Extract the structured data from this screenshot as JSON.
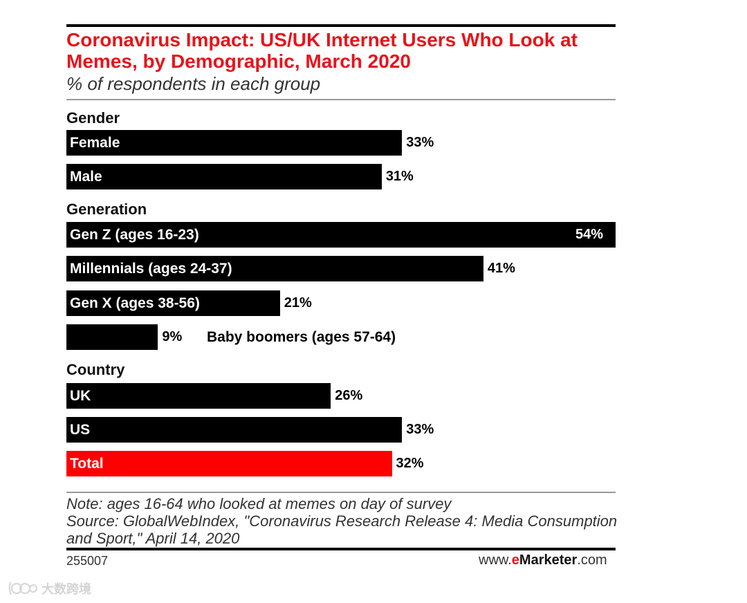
{
  "chart_data": {
    "type": "bar",
    "orientation": "horizontal",
    "title": "Coronavirus Impact: US/UK Internet Users Who Look at Memes, by Demographic, March 2020",
    "subtitle": "% of respondents in each group",
    "unit": "%",
    "xlim": [
      0,
      54
    ],
    "groups": [
      {
        "label": "Gender",
        "bars": [
          {
            "label": "Female",
            "value": 33,
            "value_text": "33%"
          },
          {
            "label": "Male",
            "value": 31,
            "value_text": "31%"
          }
        ]
      },
      {
        "label": "Generation",
        "bars": [
          {
            "label": "Gen Z (ages 16-23)",
            "value": 54,
            "value_text": "54%"
          },
          {
            "label": "Millennials (ages 24-37)",
            "value": 41,
            "value_text": "41%"
          },
          {
            "label": "Gen X (ages 38-56)",
            "value": 21,
            "value_text": "21%"
          },
          {
            "label": "Baby boomers (ages 57-64)",
            "value": 9,
            "value_text": "9%"
          }
        ]
      },
      {
        "label": "Country",
        "bars": [
          {
            "label": "UK",
            "value": 26,
            "value_text": "26%"
          },
          {
            "label": "US",
            "value": 33,
            "value_text": "33%"
          },
          {
            "label": "Total",
            "value": 32,
            "value_text": "32%",
            "highlight": true
          }
        ]
      }
    ],
    "highlight_color": "#ff0000",
    "bar_color": "#000000"
  },
  "note": "Note: ages 16-64 who looked at memes on day of survey",
  "source": "Source: GlobalWebIndex, \"Coronavirus Research Release 4: Media Consumption and Sport,\" April 14, 2020",
  "chart_id": "255007",
  "brand": {
    "prefix": "www.",
    "e": "e",
    "name": "Marketer",
    "suffix": ".com"
  },
  "watermark": "大数跨境"
}
